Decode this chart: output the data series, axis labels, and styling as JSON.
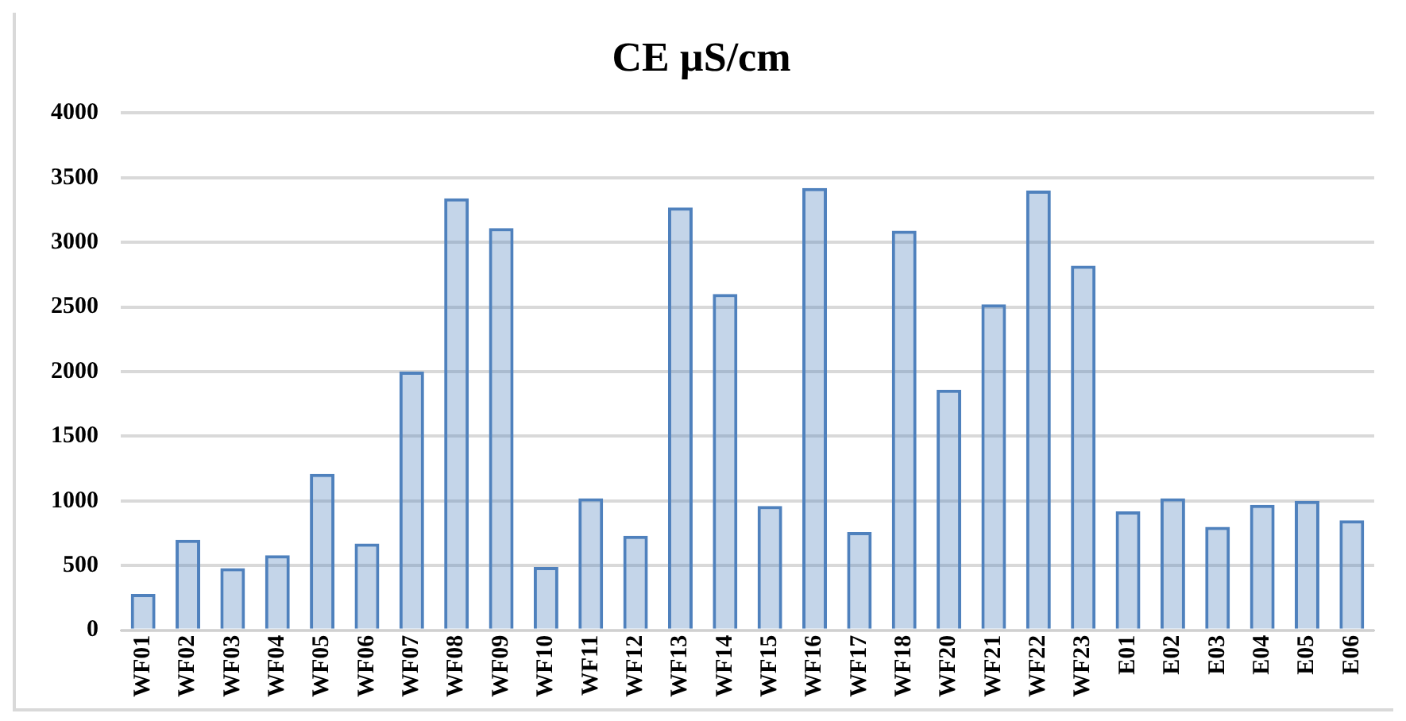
{
  "chart_data": {
    "type": "bar",
    "title": "CE µS/cm",
    "categories": [
      "WF01",
      "WF02",
      "WF03",
      "WF04",
      "WF05",
      "WF06",
      "WF07",
      "WF08",
      "WF09",
      "WF10",
      "WF11",
      "WF12",
      "WF13",
      "WF14",
      "WF15",
      "WF16",
      "WF17",
      "WF18",
      "WF20",
      "WF21",
      "WF22",
      "WF23",
      "E01",
      "E02",
      "E03",
      "E04",
      "E05",
      "E06"
    ],
    "values": [
      280,
      700,
      480,
      580,
      1210,
      670,
      2000,
      3340,
      3110,
      490,
      1020,
      730,
      3270,
      2600,
      960,
      3420,
      760,
      3090,
      1860,
      2520,
      3400,
      2820,
      920,
      1020,
      800,
      970,
      1000,
      850
    ],
    "color": "#4f81bd",
    "ylim": [
      0,
      4000
    ],
    "yticks": [
      0,
      500,
      1000,
      1500,
      2000,
      2500,
      3000,
      3500,
      4000
    ],
    "grid": "y"
  }
}
